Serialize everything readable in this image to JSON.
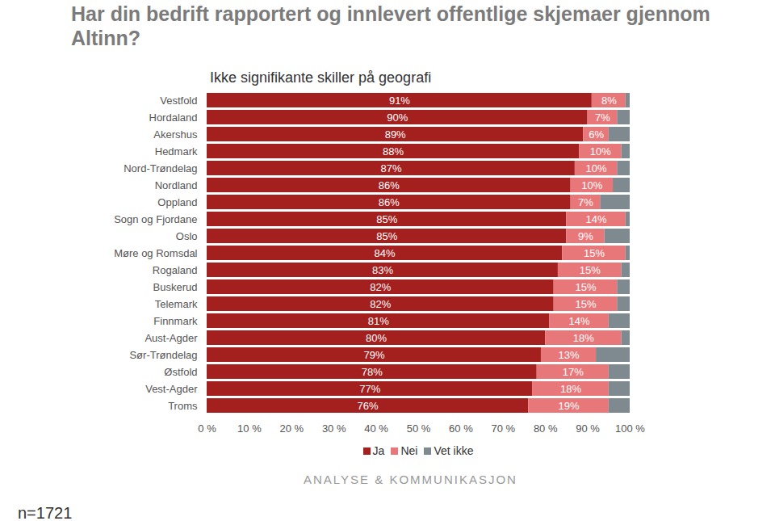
{
  "chart_data": {
    "type": "bar",
    "orientation": "horizontal",
    "stacked": true,
    "title": "Har din bedrift rapportert og innlevert offentlige skjemaer gjennom Altinn?",
    "subtitle": "Ikke signifikante skiller på geografi",
    "annotations": [
      "ANALYSE & KOMMUNIKASJON",
      "n=1721"
    ],
    "categories": [
      "Vestfold",
      "Hordaland",
      "Akershus",
      "Hedmark",
      "Nord-Trøndelag",
      "Nordland",
      "Oppland",
      "Sogn og Fjordane",
      "Oslo",
      "Møre og Romsdal",
      "Rogaland",
      "Buskerud",
      "Telemark",
      "Finnmark",
      "Aust-Agder",
      "Sør-Trøndelag",
      "Østfold",
      "Vest-Agder",
      "Troms"
    ],
    "series": [
      {
        "name": "Ja",
        "color": "#a3201f",
        "data_labels": true,
        "values": [
          91,
          90,
          89,
          88,
          87,
          86,
          86,
          85,
          85,
          84,
          83,
          82,
          82,
          81,
          80,
          79,
          78,
          77,
          76
        ],
        "value_labels": [
          "91%",
          "90%",
          "89%",
          "88%",
          "87%",
          "86%",
          "86%",
          "85%",
          "85%",
          "84%",
          "83%",
          "82%",
          "82%",
          "81%",
          "80%",
          "79%",
          "78%",
          "77%",
          "76%"
        ]
      },
      {
        "name": "Nei",
        "color": "#e8777a",
        "data_labels": true,
        "values": [
          8,
          7,
          6,
          10,
          10,
          10,
          7,
          14,
          9,
          15,
          15,
          15,
          15,
          14,
          18,
          13,
          17,
          18,
          19
        ],
        "value_labels": [
          "8%",
          "7%",
          "6%",
          "10%",
          "10%",
          "10%",
          "7%",
          "14%",
          "9%",
          "15%",
          "15%",
          "15%",
          "15%",
          "14%",
          "18%",
          "13%",
          "17%",
          "18%",
          "19%"
        ]
      },
      {
        "name": "Vet ikke",
        "color": "#7f8990",
        "data_labels": false,
        "values": [
          1,
          3,
          5,
          2,
          3,
          4,
          7,
          1,
          6,
          1,
          2,
          3,
          3,
          5,
          2,
          8,
          5,
          5,
          5
        ]
      }
    ],
    "xlim": [
      0,
      100
    ],
    "xticks": [
      {
        "value": 0,
        "label": "0 %"
      },
      {
        "value": 10,
        "label": "10 %"
      },
      {
        "value": 20,
        "label": "20 %"
      },
      {
        "value": 30,
        "label": "30 %"
      },
      {
        "value": 40,
        "label": "40 %"
      },
      {
        "value": 50,
        "label": "50 %"
      },
      {
        "value": 60,
        "label": "60 %"
      },
      {
        "value": 70,
        "label": "70 %"
      },
      {
        "value": 80,
        "label": "80 %"
      },
      {
        "value": 90,
        "label": "90 %"
      },
      {
        "value": 100,
        "label": "100 %"
      }
    ],
    "grid": false,
    "legend": "bottom"
  }
}
